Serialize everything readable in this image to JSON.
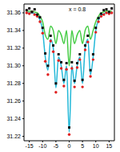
{
  "chart_data": {
    "type": "scatter",
    "annotation": "x = 0.8",
    "x": [
      -16,
      -15,
      -14,
      -13,
      -12,
      -11,
      -10,
      -9,
      -8,
      -7,
      -6,
      -5,
      -4,
      -3,
      -2,
      -1,
      0,
      1,
      2,
      3,
      4,
      5,
      6,
      7,
      8,
      9,
      10,
      11,
      12,
      13,
      14,
      15,
      16
    ],
    "xlim": [
      -17,
      17
    ],
    "xticks": [
      -15,
      -10,
      -5,
      0,
      5,
      10,
      15
    ],
    "ylim": [
      31.215,
      31.37
    ],
    "yticks": [
      31.22,
      31.24,
      31.26,
      31.28,
      {
        "value": 31.3,
        "label": "31.30"
      },
      31.32,
      31.34,
      31.36
    ],
    "grid": false,
    "series": [
      {
        "type": "line",
        "color": "#22b8d8",
        "line_style": "solid",
        "values": [
          31.36,
          31.36,
          31.36,
          31.359,
          31.357,
          31.352,
          31.34,
          31.31,
          31.295,
          31.33,
          31.32,
          31.275,
          31.31,
          31.3,
          31.28,
          31.3,
          31.225,
          31.3,
          31.28,
          31.3,
          31.31,
          31.28,
          31.32,
          31.33,
          31.29,
          31.31,
          31.34,
          31.352,
          31.357,
          31.359,
          31.36,
          31.36,
          31.36
        ]
      },
      {
        "type": "line",
        "color": "#44cc44",
        "line_style": "solid",
        "values": [
          31.362,
          31.362,
          31.362,
          31.361,
          31.36,
          31.356,
          31.35,
          31.335,
          31.33,
          31.345,
          31.34,
          31.325,
          31.34,
          31.335,
          31.325,
          31.34,
          31.3,
          31.34,
          31.325,
          31.335,
          31.34,
          31.325,
          31.34,
          31.345,
          31.33,
          31.34,
          31.35,
          31.356,
          31.36,
          31.361,
          31.362,
          31.362,
          31.362
        ]
      },
      {
        "type": "scatter",
        "color": "#e02020",
        "marker": "circle",
        "values": [
          31.36,
          31.359,
          31.361,
          31.358,
          31.356,
          31.35,
          31.337,
          31.305,
          31.29,
          31.328,
          31.316,
          31.27,
          31.306,
          31.297,
          31.277,
          31.296,
          31.222,
          31.297,
          31.276,
          31.298,
          31.307,
          31.276,
          31.318,
          31.327,
          31.288,
          31.307,
          31.338,
          31.35,
          31.356,
          31.358,
          31.36,
          31.359,
          31.36
        ]
      },
      {
        "type": "scatter",
        "color": "#111111",
        "marker": "square",
        "values": [
          31.363,
          31.365,
          31.361,
          31.364,
          31.358,
          31.355,
          31.343,
          31.314,
          31.3,
          31.334,
          31.323,
          31.28,
          31.313,
          31.304,
          31.284,
          31.303,
          31.23,
          31.304,
          31.283,
          31.303,
          31.313,
          31.284,
          31.323,
          31.334,
          31.295,
          31.313,
          31.343,
          31.354,
          31.359,
          31.363,
          31.364,
          31.361,
          31.365
        ]
      }
    ]
  }
}
